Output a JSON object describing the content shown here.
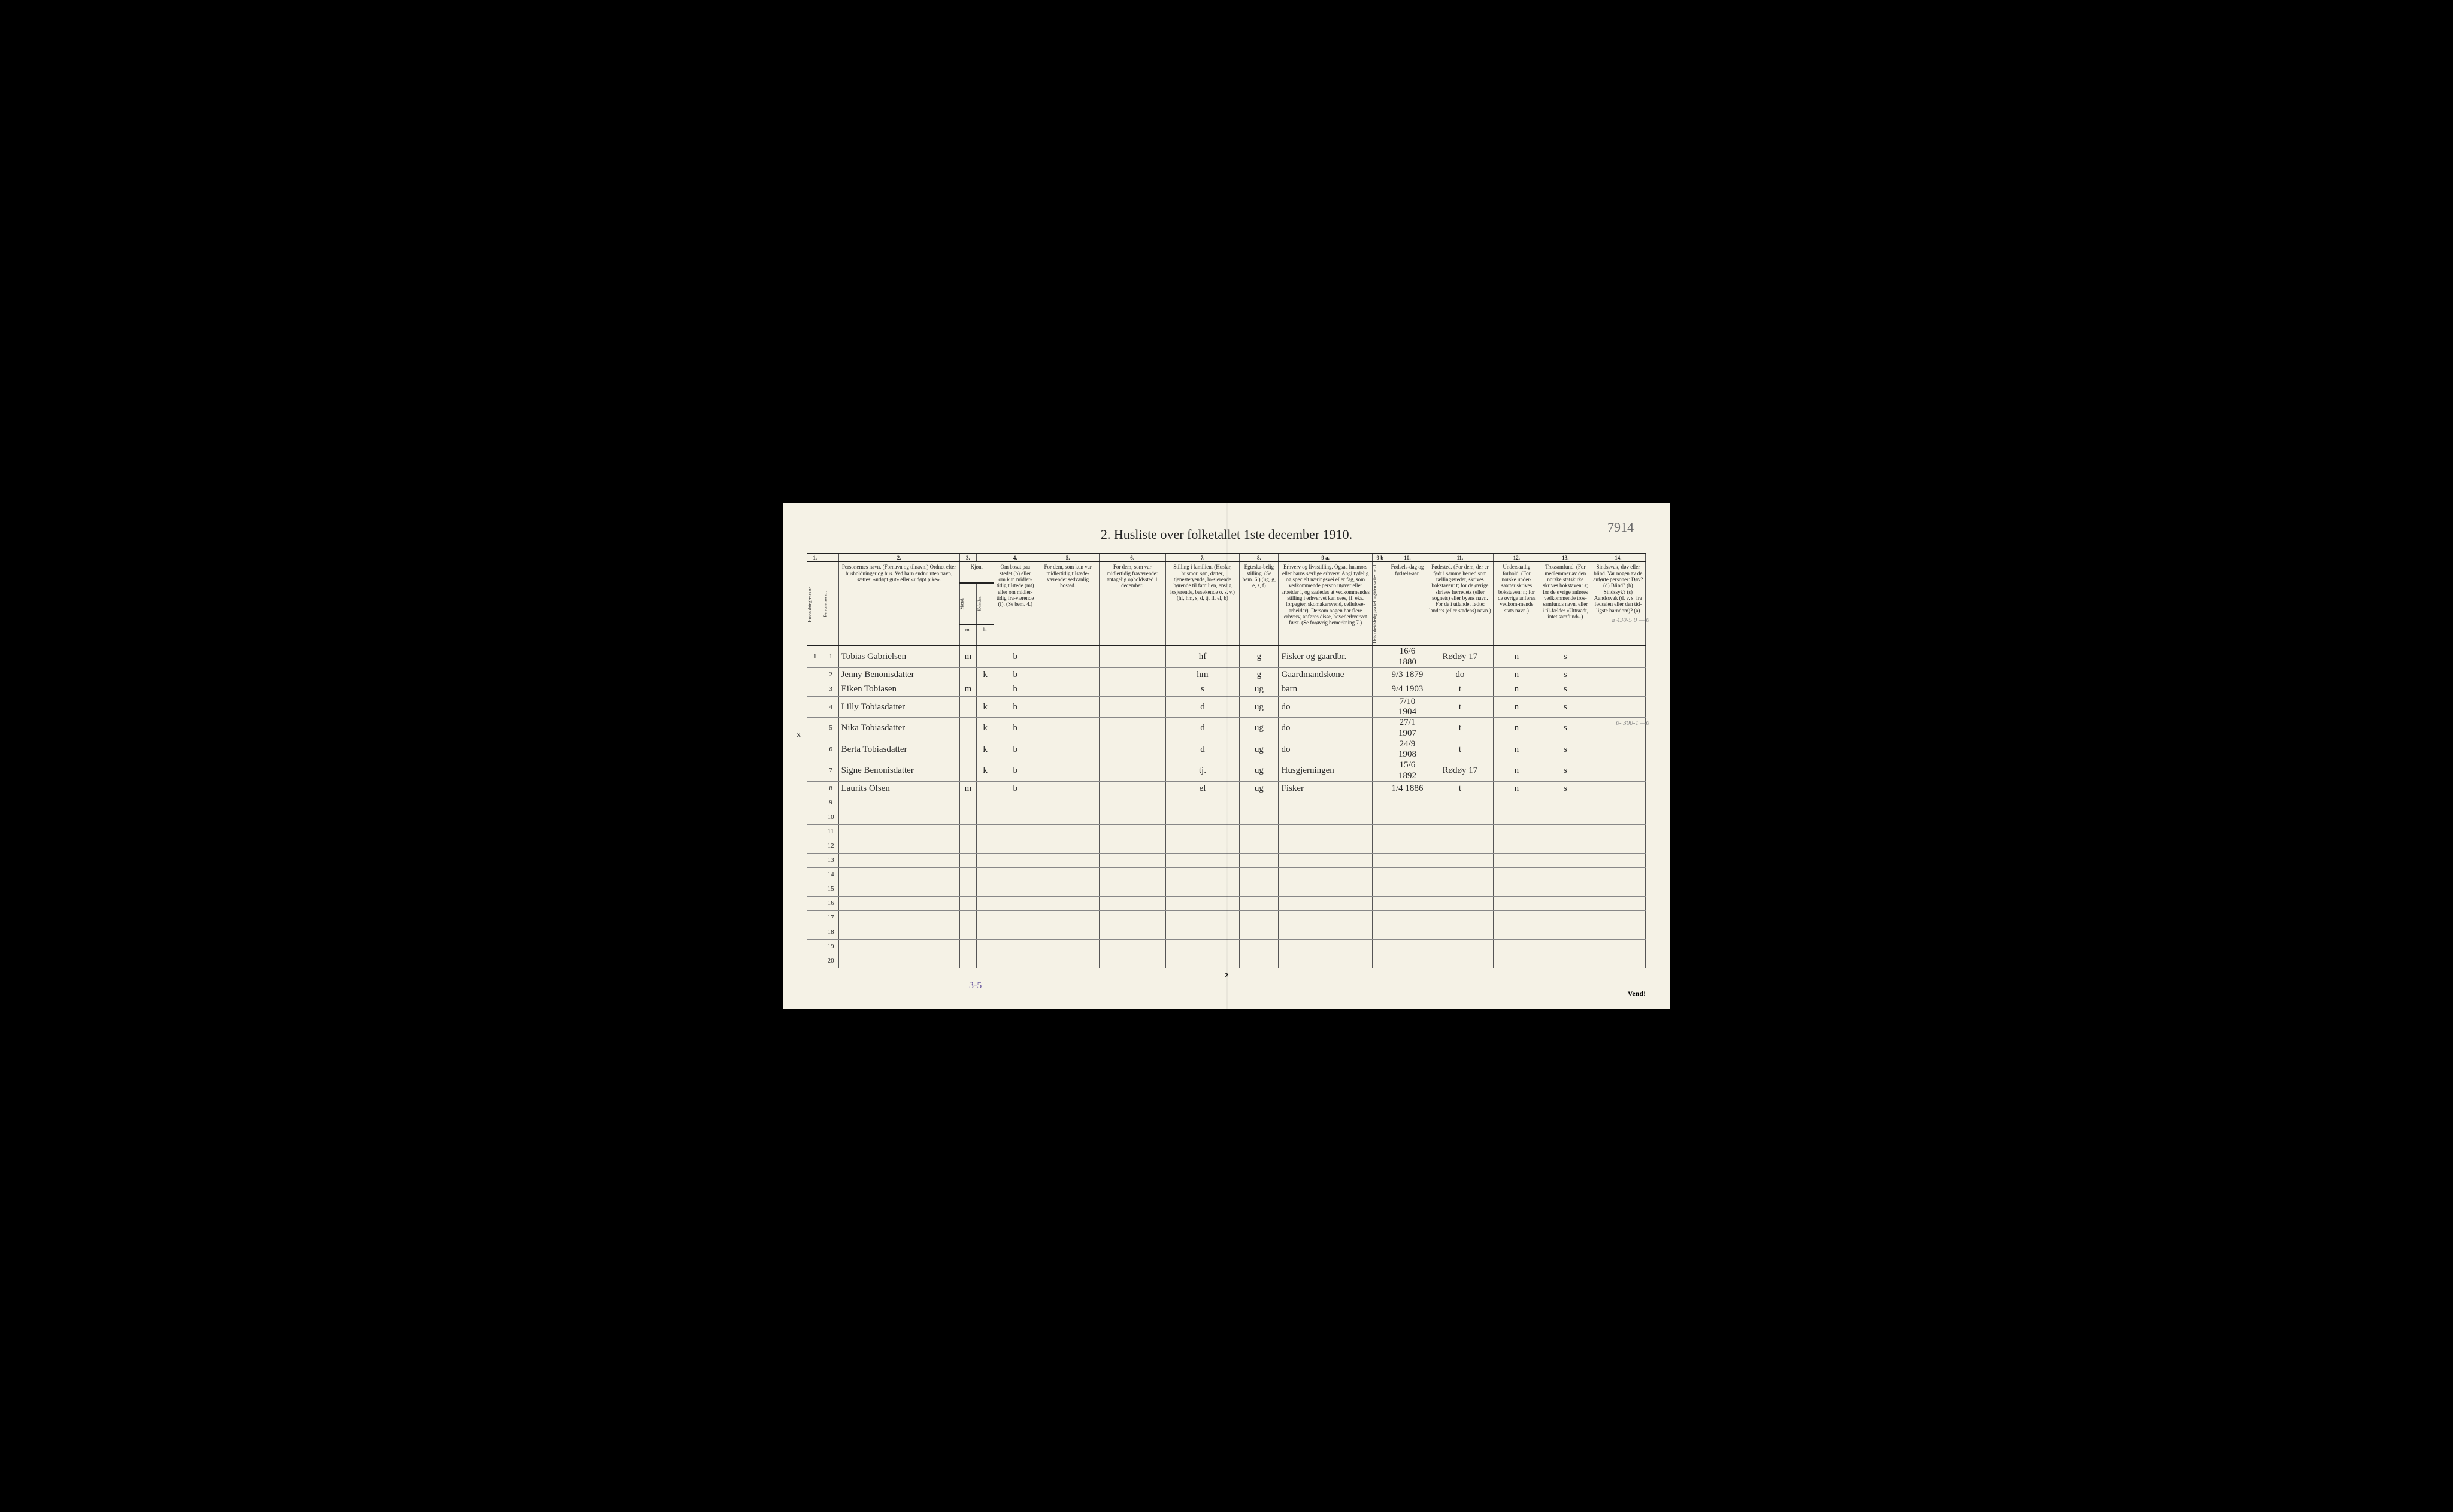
{
  "title": "2.  Husliste over folketallet 1ste december 1910.",
  "handwritten_page_no": "7914",
  "footer": "Vend!",
  "bottom_page_num": "2",
  "bottom_annot": "3-5",
  "margin_x": "x",
  "rt_annot1": "a 430-5\n0 — 0",
  "rt_annot2": "0- 300-1\n—0",
  "colors": {
    "paper": "#f5f2e6",
    "ink": "#222222",
    "hand_ink": "#2a2a2a",
    "pencil": "#6b6b6b",
    "purple": "#6b5aa0"
  },
  "col_widths_pct": [
    2.0,
    2.0,
    15.5,
    2.2,
    2.2,
    5.5,
    8.0,
    8.5,
    9.5,
    5.0,
    12.0,
    2.0,
    5.0,
    8.5,
    6.0,
    6.5,
    7.0
  ],
  "colnums": [
    "1.",
    "",
    "2.",
    "3.",
    "",
    "4.",
    "5.",
    "6.",
    "7.",
    "8.",
    "9 a.",
    "9 b",
    "10.",
    "11.",
    "12.",
    "13.",
    "14."
  ],
  "headers": {
    "c1": "Husholdningernes nr.",
    "c1b": "Personernes nr.",
    "c2": "Personernes navn.\n(Fornavn og tilnavn.)\nOrdnet efter husholdninger og hus.\nVed barn endnu uten navn, sættes: «udøpt gut» eller «udøpt pike».",
    "c3a": "Kjøn.",
    "c3b": "Mænd.",
    "c3c": "Kvinder.",
    "c3d": "m.",
    "c3e": "k.",
    "c4": "Om bosat paa stedet (b) eller om kun midler-tidig tilstede (mt) eller om midler-tidig fra-værende (f).\n(Se bem. 4.)",
    "c5": "For dem, som kun var midlertidig tilstede-værende:\nsedvanlig bosted.",
    "c6": "For dem, som var midlertidig fraværende:\nantagelig opholdssted 1 december.",
    "c7": "Stilling i familien.\n(Husfar, husmor, søn, datter, tjenestetyende, lo-sjerende hørende til familien, enslig losjerende, besøkende o. s. v.)\n(hf, hm, s, d, tj, fl, el, b)",
    "c8": "Egteska-belig stilling.\n(Se bem. 6.)\n(ug, g, e, s, f)",
    "c9a": "Erhverv og livsstilling.\nOgsaa husmors eller barns særlige erhverv.\nAngi tydelig og specielt næringsvei eller fag, som vedkommende person utøver eller arbeider i, og saaledes at vedkommendes stilling i erhvervet kan sees, (f. eks. forpagter, skomakersvend, cellulose-arbeider). Dersom nogen har flere erhverv, anføres disse, hovederhvervet først.\n(Se forøvrig bemerkning 7.)",
    "c9b": "Hvis arbeidsledig paa tællingtiden sættes her: l",
    "c10": "Fødsels-dag og fødsels-aar.",
    "c11": "Fødested.\n(For dem, der er født i samme herred som tællingsstedet, skrives bokstaven: t; for de øvrige skrives herredets (eller sognets) eller byens navn. For de i utlandet fødte: landets (eller stadens) navn.)",
    "c12": "Undersaatlig forhold.\n(For norske under-saatter skrives bokstaven: n; for de øvrige anføres vedkom-mende stats navn.)",
    "c13": "Trossamfund.\n(For medlemmer av den norske statskirke skrives bokstaven: s; for de øvrige anføres vedkommende tros-samfunds navn, eller i til-fælde: «Uttraadt, intet samfund».)",
    "c14": "Sindssvak, døv eller blind.\nVar nogen av de anførte personer:\nDøv?      (d)\nBlind?    (b)\nSindssyk? (s)\nAandssvak (d. v. s. fra fødselen eller den tid-ligste barndom)? (a)"
  },
  "rows": [
    {
      "hh": "1",
      "pn": "1",
      "name": "Tobias Gabrielsen",
      "m": "m",
      "k": "",
      "res": "b",
      "c5": "",
      "c6": "",
      "fam": "hf",
      "mar": "g",
      "occ": "Fisker og gaardbr.",
      "wl": "",
      "dob": "16/6 1880",
      "birthplace": "Rødøy 17",
      "nat": "n",
      "rel": "s",
      "c14": ""
    },
    {
      "hh": "",
      "pn": "2",
      "name": "Jenny Benonisdatter",
      "m": "",
      "k": "k",
      "res": "b",
      "c5": "",
      "c6": "",
      "fam": "hm",
      "mar": "g",
      "occ": "Gaardmandskone",
      "wl": "",
      "dob": "9/3 1879",
      "birthplace": "do",
      "nat": "n",
      "rel": "s",
      "c14": ""
    },
    {
      "hh": "",
      "pn": "3",
      "name": "Eiken Tobiasen",
      "m": "m",
      "k": "",
      "res": "b",
      "c5": "",
      "c6": "",
      "fam": "s",
      "mar": "ug",
      "occ": "barn",
      "wl": "",
      "dob": "9/4 1903",
      "birthplace": "t",
      "nat": "n",
      "rel": "s",
      "c14": ""
    },
    {
      "hh": "",
      "pn": "4",
      "name": "Lilly Tobiasdatter",
      "m": "",
      "k": "k",
      "res": "b",
      "c5": "",
      "c6": "",
      "fam": "d",
      "mar": "ug",
      "occ": "do",
      "wl": "",
      "dob": "7/10 1904",
      "birthplace": "t",
      "nat": "n",
      "rel": "s",
      "c14": ""
    },
    {
      "hh": "",
      "pn": "5",
      "name": "Nika Tobiasdatter",
      "m": "",
      "k": "k",
      "res": "b",
      "c5": "",
      "c6": "",
      "fam": "d",
      "mar": "ug",
      "occ": "do",
      "wl": "",
      "dob": "27/1 1907",
      "birthplace": "t",
      "nat": "n",
      "rel": "s",
      "c14": ""
    },
    {
      "hh": "",
      "pn": "6",
      "name": "Berta Tobiasdatter",
      "m": "",
      "k": "k",
      "res": "b",
      "c5": "",
      "c6": "",
      "fam": "d",
      "mar": "ug",
      "occ": "do",
      "wl": "",
      "dob": "24/9 1908",
      "birthplace": "t",
      "nat": "n",
      "rel": "s",
      "c14": ""
    },
    {
      "hh": "",
      "pn": "7",
      "name": "Signe Benonisdatter",
      "m": "",
      "k": "k",
      "res": "b",
      "c5": "",
      "c6": "",
      "fam": "tj.",
      "mar": "ug",
      "occ": "Husgjerningen",
      "wl": "",
      "dob": "15/6 1892",
      "birthplace": "Rødøy 17",
      "nat": "n",
      "rel": "s",
      "c14": ""
    },
    {
      "hh": "",
      "pn": "8",
      "name": "Laurits Olsen",
      "m": "m",
      "k": "",
      "res": "b",
      "c5": "",
      "c6": "",
      "fam": "el",
      "mar": "ug",
      "occ": "Fisker",
      "wl": "",
      "dob": "1/4 1886",
      "birthplace": "t",
      "nat": "n",
      "rel": "s",
      "c14": ""
    }
  ],
  "blank_rows_numbered": [
    "9",
    "10",
    "11",
    "12",
    "13",
    "14",
    "15",
    "16",
    "17",
    "18",
    "19",
    "20"
  ]
}
